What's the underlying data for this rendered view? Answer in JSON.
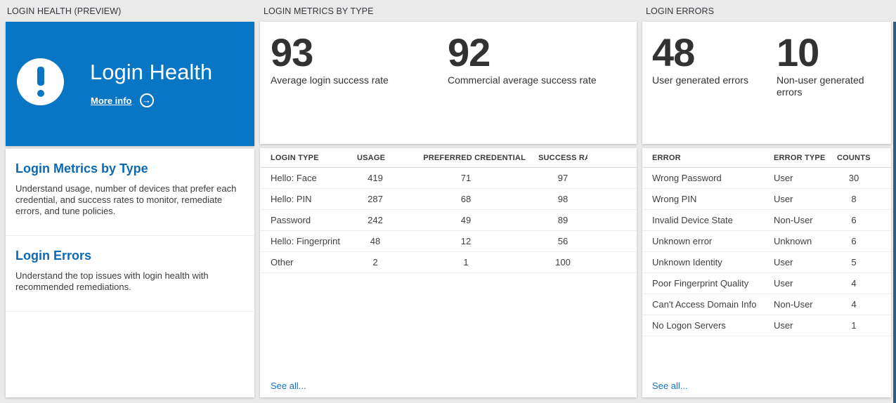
{
  "colors": {
    "page_bg": "#eaeaea",
    "tile_blue": "#0876c4",
    "heading_blue": "#0b69b5",
    "link_blue": "#1373c9",
    "number_ink": "#323232",
    "edge_strip": "#285f82"
  },
  "left_panel": {
    "header": "LOGIN HEALTH (PREVIEW)",
    "tile": {
      "title": "Login Health",
      "more_info_label": "More info",
      "arrow_glyph": "→"
    },
    "nav_items": [
      {
        "title": "Login Metrics by Type",
        "description": "Understand usage, number of devices that prefer each credential, and success rates to monitor, remediate errors, and tune policies."
      },
      {
        "title": "Login Errors",
        "description": "Understand the top issues with login health with recommended remediations."
      }
    ]
  },
  "metrics_panel": {
    "header": "LOGIN METRICS BY TYPE",
    "stats": [
      {
        "value": "93",
        "label": "Average login success rate"
      },
      {
        "value": "92",
        "label": "Commercial average success rate"
      }
    ],
    "table": {
      "columns": [
        "LOGIN TYPE",
        "USAGE",
        "PREFERRED CREDENTIAL",
        "SUCCESS RATE"
      ],
      "rows": [
        [
          "Hello: Face",
          "419",
          "71",
          "97"
        ],
        [
          "Hello: PIN",
          "287",
          "68",
          "98"
        ],
        [
          "Password",
          "242",
          "49",
          "89"
        ],
        [
          "Hello: Fingerprint",
          "48",
          "12",
          "56"
        ],
        [
          "Other",
          "2",
          "1",
          "100"
        ]
      ]
    },
    "see_all_label": "See all..."
  },
  "errors_panel": {
    "header": "LOGIN ERRORS",
    "stats": [
      {
        "value": "48",
        "label": "User generated errors"
      },
      {
        "value": "10",
        "label": "Non-user generated errors"
      }
    ],
    "table": {
      "columns": [
        "ERROR",
        "ERROR TYPE",
        "COUNTS"
      ],
      "rows": [
        [
          "Wrong Password",
          "User",
          "30"
        ],
        [
          "Wrong PIN",
          "User",
          "8"
        ],
        [
          "Invalid Device State",
          "Non-User",
          "6"
        ],
        [
          "Unknown error",
          "Unknown",
          "6"
        ],
        [
          "Unknown Identity",
          "User",
          "5"
        ],
        [
          "Poor Fingerprint Quality",
          "User",
          "4"
        ],
        [
          "Can't Access Domain Info",
          "Non-User",
          "4"
        ],
        [
          "No Logon Servers",
          "User",
          "1"
        ]
      ]
    },
    "see_all_label": "See all..."
  }
}
